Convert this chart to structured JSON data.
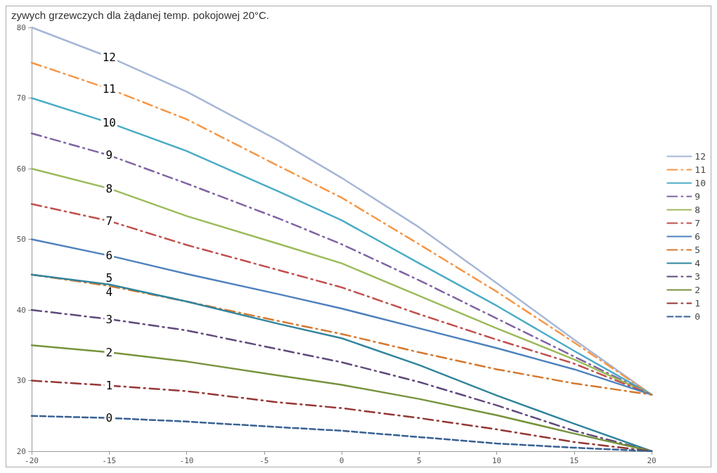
{
  "chart_data": {
    "type": "line",
    "title": "zywych grzewczych dla żądanej temp. pokojowej 20°C.",
    "x": [
      -20,
      -15,
      -10,
      -4,
      0,
      5,
      10,
      15,
      20
    ],
    "xlim": [
      -20,
      20
    ],
    "xticks": [
      -20,
      -15,
      -10,
      -5,
      0,
      5,
      10,
      15,
      20
    ],
    "ylim": [
      20,
      80
    ],
    "yticks": [
      20,
      30,
      40,
      50,
      60,
      70,
      80
    ],
    "grid": false,
    "legend": "right",
    "marker": "none",
    "series": [
      {
        "name": "12",
        "color": "#a6b7d7",
        "line_style": "solid",
        "values": [
          80,
          75.8,
          70.9,
          63.9,
          58.7,
          51.7,
          43.8,
          35.8,
          28
        ]
      },
      {
        "name": "11",
        "color": "#f79646",
        "line_style": "dashdot",
        "values": [
          75,
          71.3,
          67.0,
          60.3,
          55.9,
          49.3,
          42.6,
          35.4,
          28
        ]
      },
      {
        "name": "10",
        "color": "#4bacc6",
        "line_style": "solid",
        "values": [
          70,
          66.5,
          62.5,
          56.7,
          52.7,
          46.6,
          40.6,
          34.2,
          28
        ]
      },
      {
        "name": "9",
        "color": "#8064a2",
        "line_style": "dashdot",
        "values": [
          65,
          61.9,
          57.9,
          52.9,
          49.3,
          44.2,
          38.8,
          33.4,
          28
        ]
      },
      {
        "name": "8",
        "color": "#9bbb59",
        "line_style": "solid",
        "values": [
          60,
          57.2,
          53.3,
          49.3,
          46.6,
          42.0,
          37.4,
          33.0,
          28
        ]
      },
      {
        "name": "7",
        "color": "#c0504d",
        "line_style": "dashdot",
        "values": [
          55,
          52.6,
          49.2,
          45.6,
          43.2,
          39.4,
          35.8,
          32.4,
          28
        ]
      },
      {
        "name": "6",
        "color": "#4f81bd",
        "line_style": "solid",
        "values": [
          50,
          47.7,
          45.1,
          42.2,
          40.2,
          37.4,
          34.6,
          31.6,
          28
        ]
      },
      {
        "name": "5",
        "color": "#d6782e",
        "line_style": "dashdot",
        "values": [
          45,
          43.4,
          41.2,
          38.4,
          36.6,
          34.0,
          31.6,
          29.6,
          28
        ]
      },
      {
        "name": "4",
        "color": "#31859c",
        "line_style": "solid",
        "values": [
          45,
          43.6,
          41.2,
          38.0,
          36.0,
          32.2,
          27.9,
          23.9,
          20
        ]
      },
      {
        "name": "3",
        "color": "#604a7b",
        "line_style": "dashdot",
        "values": [
          40,
          38.7,
          37.1,
          34.4,
          32.6,
          29.8,
          26.5,
          22.9,
          20
        ]
      },
      {
        "name": "2",
        "color": "#77933c",
        "line_style": "solid",
        "values": [
          35,
          34.0,
          32.7,
          30.7,
          29.4,
          27.4,
          25.1,
          22.5,
          20
        ]
      },
      {
        "name": "1",
        "color": "#953735",
        "line_style": "dashdot",
        "values": [
          30,
          29.3,
          28.5,
          26.9,
          26.1,
          24.7,
          23.1,
          21.3,
          20
        ]
      },
      {
        "name": "0",
        "color": "#376092",
        "line_style": "dashed",
        "values": [
          25,
          24.7,
          24.2,
          23.4,
          22.9,
          22.0,
          21.1,
          20.5,
          20
        ]
      }
    ]
  }
}
